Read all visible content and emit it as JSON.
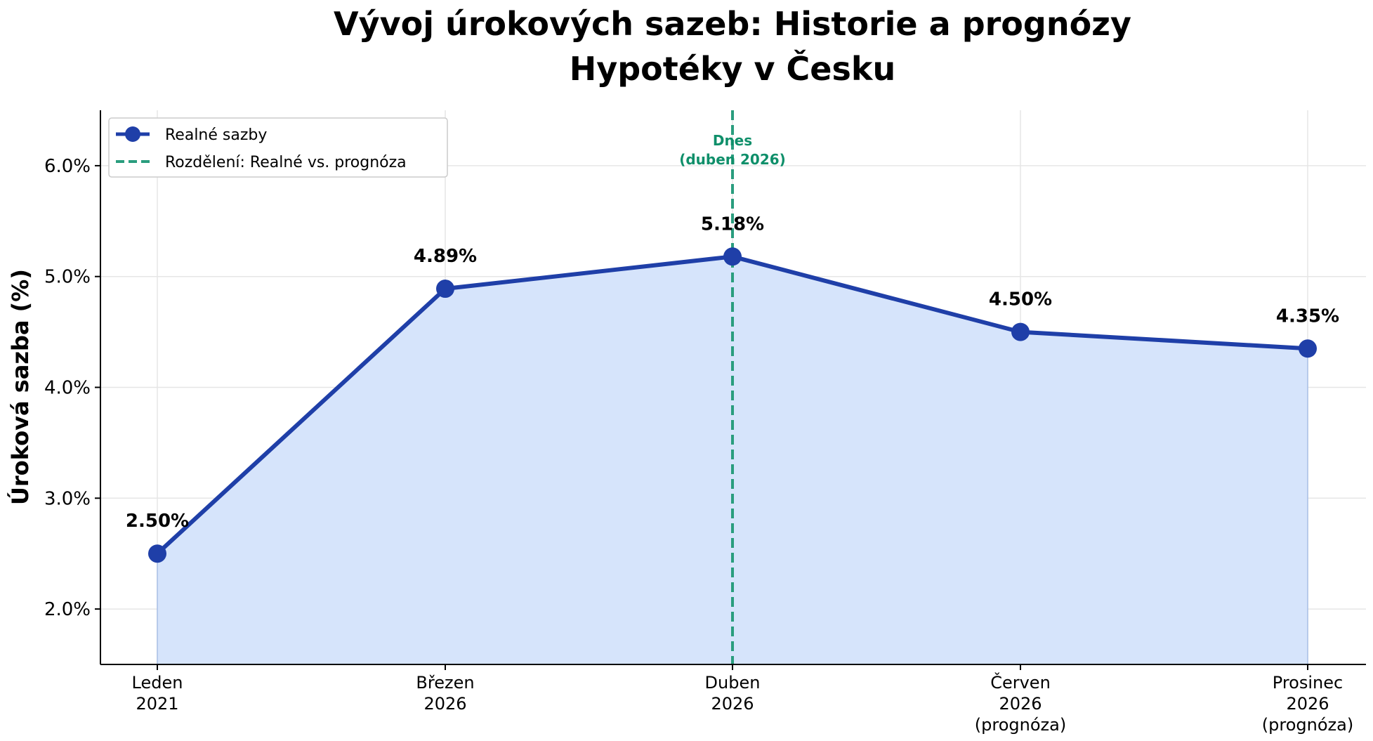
{
  "chart_data": {
    "type": "line",
    "title": "Vývoj úrokových sazeb: Historie a prognózy",
    "subtitle": "Hypotéky v Česku",
    "xlabel": "",
    "ylabel": "Úroková sazba (%)",
    "categories": [
      [
        "Leden",
        "2021"
      ],
      [
        "Březen",
        "2026"
      ],
      [
        "Duben",
        "2026"
      ],
      [
        "Červen",
        "2026",
        "(prognóza)"
      ],
      [
        "Prosinec",
        "2026",
        "(prognóza)"
      ]
    ],
    "series": [
      {
        "name": "Realné sazby",
        "values": [
          2.5,
          4.89,
          5.18,
          4.5,
          4.35
        ],
        "labels": [
          "2.50%",
          "4.89%",
          "5.18%",
          "4.50%",
          "4.35%"
        ],
        "color": "#1f3fa8",
        "fill": "#d6e4fb"
      }
    ],
    "ylim": [
      1.5,
      6.5
    ],
    "yticks": [
      2.0,
      3.0,
      4.0,
      5.0,
      6.0
    ],
    "ytick_labels": [
      "2.0%",
      "3.0%",
      "4.0%",
      "5.0%",
      "6.0%"
    ],
    "split_line": {
      "category_index": 2,
      "legend_label": "Rozdělení: Realné vs. prognóza",
      "annotation": [
        "Dnes",
        "(duben 2026)"
      ],
      "color": "#2a9d7e"
    },
    "grid": true,
    "legend_position": "top-left"
  }
}
